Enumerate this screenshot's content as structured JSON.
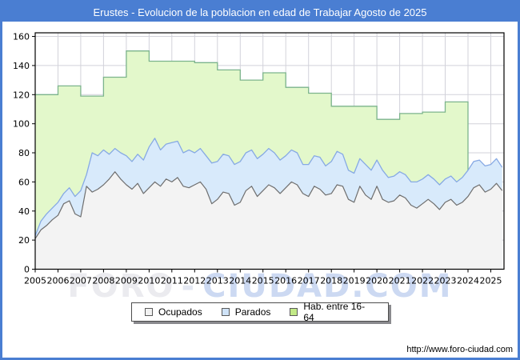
{
  "header": {
    "title": "Erustes - Evolucion de la poblacion en edad de Trabajar Agosto de 2025"
  },
  "chart_data": {
    "type": "area",
    "title": "Erustes - Evolucion de la poblacion en edad de Trabajar Agosto de 2025",
    "xlabel": "",
    "ylabel": "",
    "x_axis": {
      "min": 2005,
      "max": 2025.58,
      "tick_years": [
        2005,
        2006,
        2007,
        2008,
        2009,
        2010,
        2011,
        2012,
        2013,
        2014,
        2015,
        2016,
        2017,
        2018,
        2019,
        2020,
        2021,
        2022,
        2023,
        2024,
        2025
      ]
    },
    "y_axis": {
      "min": 0,
      "max": 160,
      "tick_step": 20,
      "ticks": [
        0,
        20,
        40,
        60,
        80,
        100,
        120,
        140,
        160
      ]
    },
    "grid": true,
    "legend_position": "bottom",
    "stacking": "Parados is stacked on top of Ocupados; Hab. entre 16-64 is a background annual step area ending at 2024.0",
    "series": [
      {
        "name": "Ocupados",
        "render": "area-base",
        "color_fill": "#f3f3f3",
        "color_line": "#6e6e6e",
        "x_start": 2005.0,
        "x_step": 0.25,
        "values": [
          21,
          27,
          30,
          34,
          37,
          45,
          47,
          38,
          36,
          57,
          53,
          55,
          58,
          62,
          67,
          62,
          58,
          55,
          59,
          52,
          56,
          60,
          57,
          62,
          60,
          63,
          57,
          56,
          58,
          60,
          55,
          45,
          48,
          53,
          52,
          44,
          46,
          54,
          57,
          50,
          54,
          58,
          56,
          52,
          56,
          60,
          58,
          52,
          50,
          57,
          55,
          51,
          52,
          58,
          57,
          48,
          46,
          57,
          51,
          48,
          57,
          48,
          46,
          47,
          51,
          49,
          44,
          42,
          45,
          48,
          45,
          41,
          46,
          48,
          44,
          46,
          50,
          56,
          58,
          53,
          55,
          59,
          54
        ]
      },
      {
        "name": "Parados",
        "render": "area-stacked-on-ocupados",
        "color_fill": "#d8eafb",
        "color_line": "#86a9e4",
        "x_start": 2005.0,
        "x_step": 0.25,
        "values": [
          2,
          6,
          8,
          8,
          9,
          7,
          9,
          12,
          18,
          8,
          27,
          23,
          24,
          17,
          16,
          18,
          20,
          19,
          20,
          23,
          28,
          30,
          25,
          24,
          27,
          25,
          23,
          26,
          22,
          23,
          23,
          28,
          26,
          26,
          26,
          28,
          28,
          26,
          25,
          26,
          25,
          25,
          24,
          23,
          22,
          22,
          22,
          20,
          22,
          21,
          22,
          20,
          22,
          23,
          22,
          20,
          20,
          19,
          21,
          20,
          18,
          20,
          17,
          17,
          16,
          16,
          16,
          18,
          17,
          17,
          17,
          17,
          16,
          16,
          16,
          17,
          18,
          18,
          17,
          18,
          17,
          17,
          16
        ]
      },
      {
        "name": "Hab. entre 16-64",
        "render": "step-area-annual",
        "color_fill": "#e3f8cb",
        "color_line": "#7cb48c",
        "x_start": 2005,
        "x_step": 1,
        "x_end": 2024,
        "values": [
          120,
          126,
          119,
          132,
          150,
          143,
          143,
          142,
          137,
          130,
          135,
          125,
          121,
          112,
          112,
          103,
          107,
          108,
          115
        ]
      }
    ]
  },
  "legend": {
    "items": [
      {
        "label": "Ocupados",
        "swatch": "#f2f2f2"
      },
      {
        "label": "Parados",
        "swatch": "#cfe3f8"
      },
      {
        "label": "Hab. entre 16-64",
        "swatch": "#c2e987"
      }
    ]
  },
  "watermark": {
    "part1": "FORO",
    "separator": "-",
    "part2": "CIUDAD.COM"
  },
  "footer": {
    "url": "http://www.foro-ciudad.com"
  },
  "colors": {
    "accent_blue": "#4a7ed2",
    "grid": "#d2d2da",
    "axis": "#000000"
  }
}
